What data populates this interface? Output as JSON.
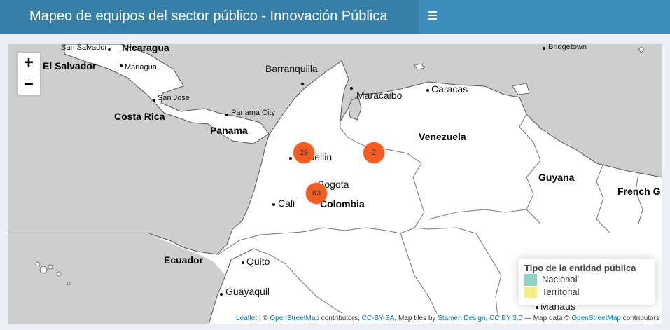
{
  "header": {
    "title": "Mapeo de equipos del sector público - Innovación Pública",
    "menu_icon": "hamburger-icon"
  },
  "zoom": {
    "in_label": "+",
    "out_label": "−"
  },
  "labels": {
    "san_salvador": "San Salvador",
    "nicaragua": "Nicaragua",
    "el_salvador": "El Salvador",
    "managua": "Managua",
    "san_jose": "San Jose",
    "costa_rica": "Costa Rica",
    "panama_city": "Panama City",
    "panama": "Panama",
    "barranquilla": "Barranquilla",
    "maracaibo": "Maracaibo",
    "caracas": "Caracas",
    "bridgetown": "Bridgetown",
    "venezuela": "Venezuela",
    "medellin": "Medellin",
    "bogota": "Bogota",
    "cali": "Cali",
    "colombia": "Colombia",
    "guyana": "Guyana",
    "french_guiana": "French G",
    "ecuador": "Ecuador",
    "quito": "Quito",
    "guayaquil": "Guayaquil",
    "manaus": "Manaus"
  },
  "clusters": [
    {
      "count": "29"
    },
    {
      "count": "2"
    },
    {
      "count": "83"
    }
  ],
  "legend": {
    "title": "Tipo de la entidad pública",
    "items": [
      {
        "label": "Nacional'",
        "color": "#8dd3c7"
      },
      {
        "label": "Territorial",
        "color": "#f0f08a"
      }
    ]
  },
  "attribution": {
    "leaflet": "Leaflet",
    "sep1": " | © ",
    "osm1": "OpenStreetMap",
    "t1": " contributors, ",
    "ccbysa": "CC-BY-SA",
    "t2": ", Map tiles by ",
    "stamen": "Stamen Design",
    "t3": ", ",
    "ccby": "CC BY 3.0",
    "t4": " — Map data © ",
    "osm2": "OpenStreetMap",
    "t5": " contributors"
  },
  "colors": {
    "header": "#3c8dbc",
    "logo": "#367fa9",
    "cluster": "#f35d22",
    "water": "#cecece",
    "land": "#ffffff"
  }
}
